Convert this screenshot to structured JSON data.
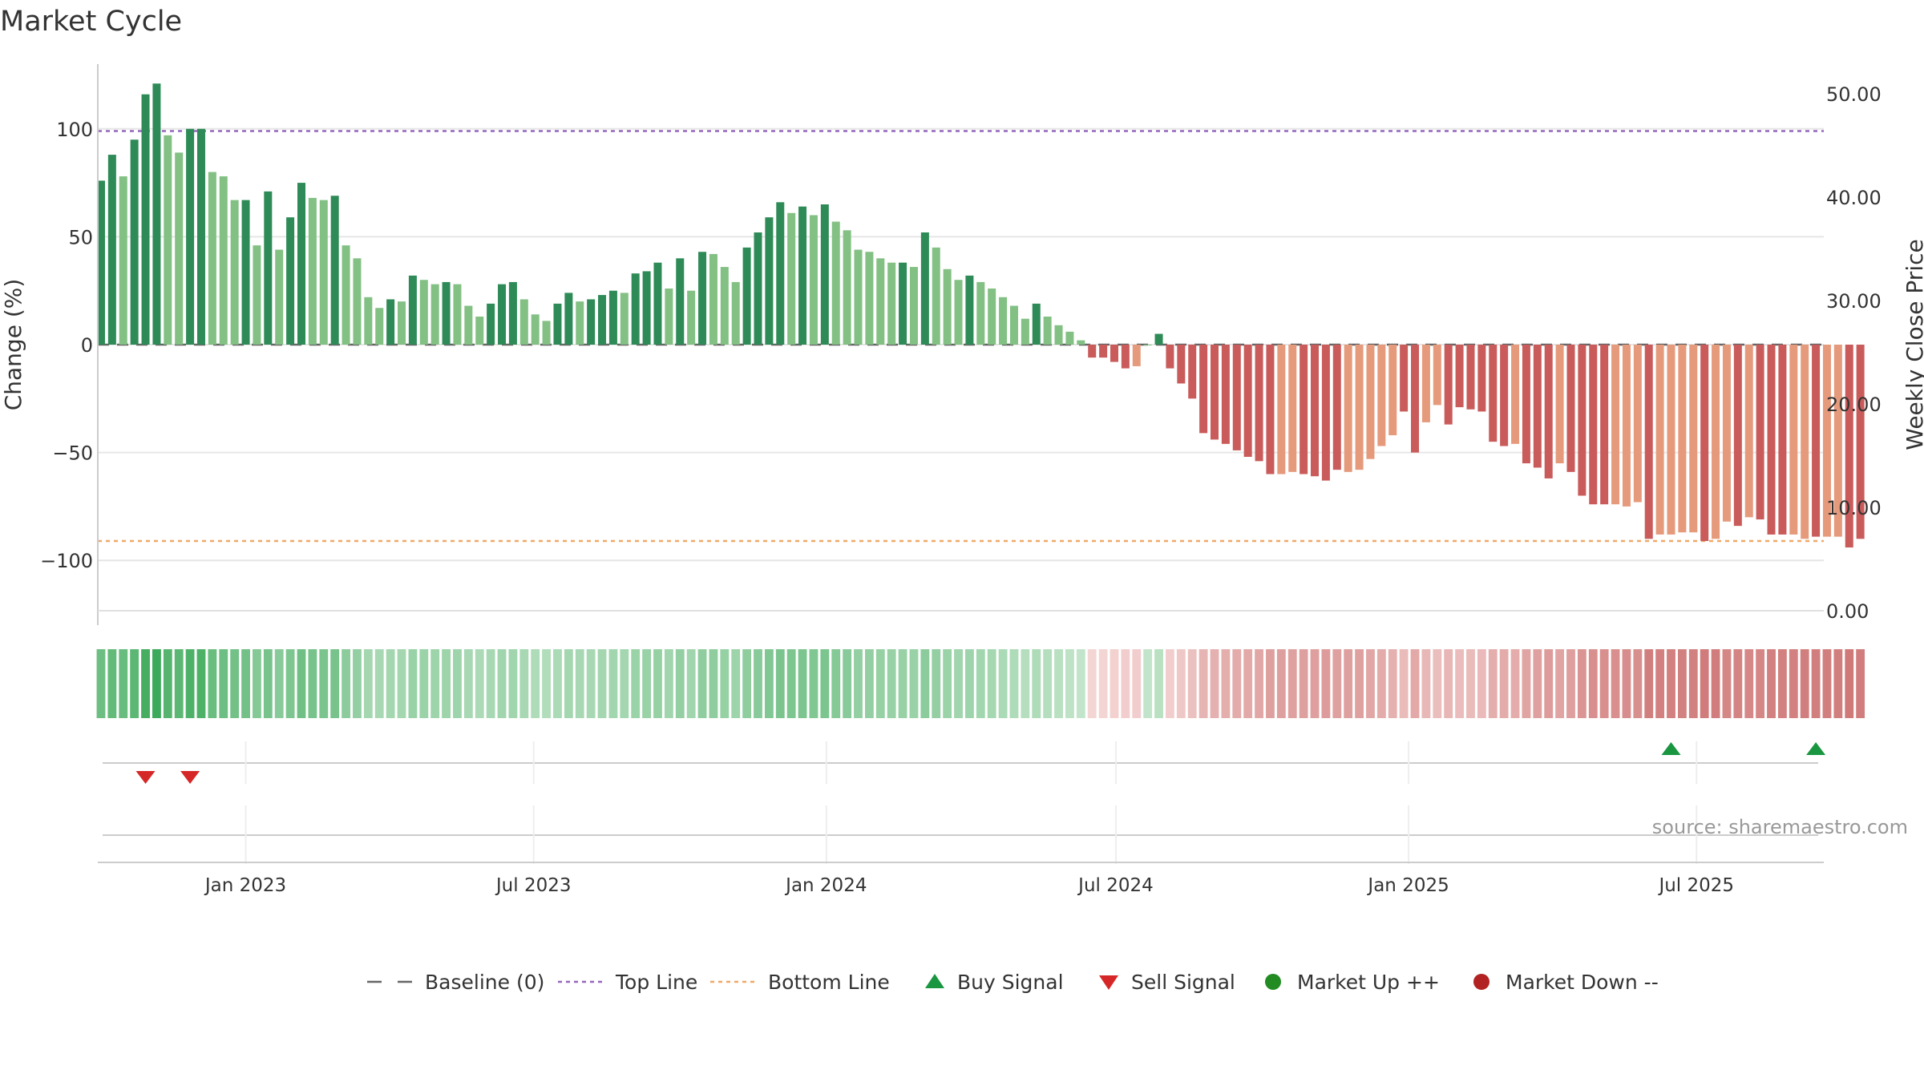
{
  "chart_data": {
    "type": "bar",
    "title": "Market Cycle",
    "ylabel": "Change (%)",
    "y2label": "Weekly Close Price",
    "ylim": [
      -130,
      130
    ],
    "y_ticks": [
      100,
      50,
      0,
      -50,
      -100
    ],
    "y_tick_labels": [
      "100",
      "50",
      "0",
      "−50",
      "−100"
    ],
    "y2lim": [
      0,
      52
    ],
    "y2_ticks": [
      0,
      10,
      20,
      30,
      40,
      50
    ],
    "y2_tick_labels": [
      "0.00",
      "10.00",
      "20.00",
      "30.00",
      "40.00",
      "50.00"
    ],
    "x_range": [
      "2022-09-30",
      "2025-09-19"
    ],
    "x_ticks": [
      "2023-01-01",
      "2023-07-01",
      "2024-01-01",
      "2024-07-01",
      "2025-01-01",
      "2025-07-01"
    ],
    "x_tick_labels": [
      "Jan 2023",
      "Jul 2023",
      "Jan 2024",
      "Jul 2024",
      "Jan 2025",
      "Jul 2025"
    ],
    "grid": true,
    "legend_position": "bottom",
    "source_text": "source: sharemaestro.com",
    "start_week": "2022-10-02",
    "week_step_days": 7,
    "values": [
      76,
      88,
      78,
      95,
      116,
      121,
      97,
      89,
      100,
      100,
      80,
      78,
      67,
      67,
      46,
      71,
      44,
      59,
      75,
      68,
      67,
      69,
      46,
      40,
      22,
      17,
      21,
      20,
      32,
      30,
      28,
      29,
      28,
      18,
      13,
      19,
      28,
      29,
      21,
      14,
      11,
      19,
      24,
      20,
      21,
      23,
      25,
      24,
      33,
      34,
      38,
      26,
      40,
      25,
      43,
      42,
      36,
      29,
      45,
      52,
      59,
      66,
      61,
      64,
      60,
      65,
      57,
      53,
      44,
      43,
      40,
      38,
      38,
      36,
      52,
      45,
      35,
      30,
      32,
      29,
      26,
      22,
      18,
      12,
      19,
      13,
      9,
      6,
      2,
      -6,
      -6,
      -8,
      -11,
      -10,
      0,
      5,
      -11,
      -18,
      -25,
      -41,
      -44,
      -46,
      -49,
      -52,
      -54,
      -60,
      -60,
      -59,
      -60,
      -61,
      -63,
      -58,
      -59,
      -58,
      -53,
      -47,
      -42,
      -31,
      -50,
      -36,
      -28,
      -37,
      -29,
      -30,
      -31,
      -45,
      -47,
      -46,
      -55,
      -57,
      -62,
      -55,
      -59,
      -70,
      -74,
      -74,
      -74,
      -75,
      -73,
      -90,
      -88,
      -88,
      -87,
      -87,
      -91,
      -90,
      -82,
      -84,
      -80,
      -81,
      -88,
      -88,
      -88,
      -90,
      -89,
      -89,
      -89,
      -94,
      -90
    ],
    "bar_style": [
      1,
      1,
      0,
      1,
      1,
      1,
      0,
      0,
      1,
      1,
      0,
      0,
      0,
      1,
      0,
      1,
      0,
      1,
      1,
      0,
      0,
      1,
      0,
      0,
      0,
      0,
      1,
      0,
      1,
      0,
      0,
      1,
      0,
      0,
      0,
      1,
      1,
      1,
      0,
      0,
      0,
      1,
      1,
      0,
      1,
      1,
      1,
      0,
      1,
      1,
      1,
      0,
      1,
      0,
      1,
      0,
      0,
      0,
      1,
      1,
      1,
      1,
      0,
      1,
      0,
      1,
      0,
      0,
      0,
      0,
      0,
      0,
      1,
      0,
      1,
      0,
      0,
      0,
      1,
      0,
      0,
      0,
      0,
      0,
      1,
      0,
      0,
      0,
      0,
      1,
      1,
      1,
      1,
      0,
      0,
      1,
      1,
      1,
      1,
      1,
      1,
      1,
      1,
      1,
      1,
      1,
      0,
      0,
      1,
      1,
      1,
      1,
      0,
      0,
      0,
      0,
      0,
      1,
      1,
      0,
      0,
      1,
      1,
      1,
      1,
      1,
      1,
      0,
      1,
      1,
      1,
      0,
      1,
      1,
      1,
      1,
      0,
      0,
      0,
      1,
      0,
      0,
      0,
      0,
      1,
      0,
      0,
      1,
      0,
      1,
      1,
      1,
      0,
      0,
      1,
      0,
      0,
      1,
      1,
      0
    ],
    "color_strip": [
      0.72,
      0.78,
      0.75,
      0.82,
      0.95,
      1.0,
      0.85,
      0.82,
      0.9,
      0.9,
      0.74,
      0.72,
      0.68,
      0.68,
      0.58,
      0.66,
      0.56,
      0.62,
      0.7,
      0.66,
      0.64,
      0.66,
      0.54,
      0.5,
      0.4,
      0.38,
      0.4,
      0.4,
      0.46,
      0.45,
      0.44,
      0.44,
      0.43,
      0.38,
      0.35,
      0.38,
      0.42,
      0.42,
      0.38,
      0.34,
      0.32,
      0.36,
      0.4,
      0.38,
      0.38,
      0.4,
      0.41,
      0.4,
      0.45,
      0.46,
      0.48,
      0.42,
      0.5,
      0.42,
      0.52,
      0.52,
      0.48,
      0.44,
      0.52,
      0.56,
      0.6,
      0.64,
      0.62,
      0.63,
      0.61,
      0.63,
      0.58,
      0.56,
      0.5,
      0.5,
      0.48,
      0.47,
      0.47,
      0.46,
      0.54,
      0.5,
      0.45,
      0.42,
      0.43,
      0.41,
      0.39,
      0.36,
      0.34,
      0.3,
      0.34,
      0.3,
      0.28,
      0.25,
      0.22,
      -0.15,
      -0.15,
      -0.18,
      -0.2,
      -0.2,
      0.22,
      0.28,
      -0.2,
      -0.25,
      -0.3,
      -0.4,
      -0.42,
      -0.44,
      -0.46,
      -0.48,
      -0.5,
      -0.55,
      -0.55,
      -0.54,
      -0.55,
      -0.56,
      -0.58,
      -0.54,
      -0.55,
      -0.54,
      -0.5,
      -0.46,
      -0.42,
      -0.34,
      -0.48,
      -0.37,
      -0.32,
      -0.38,
      -0.33,
      -0.34,
      -0.35,
      -0.44,
      -0.46,
      -0.45,
      -0.52,
      -0.54,
      -0.58,
      -0.52,
      -0.56,
      -0.64,
      -0.68,
      -0.68,
      -0.68,
      -0.69,
      -0.67,
      -0.8,
      -0.79,
      -0.79,
      -0.78,
      -0.78,
      -0.82,
      -0.81,
      -0.74,
      -0.76,
      -0.73,
      -0.74,
      -0.79,
      -0.79,
      -0.79,
      -0.8,
      -0.8,
      -0.8,
      -0.8,
      -0.84,
      -0.81
    ],
    "top_line": 99,
    "bottom_line": -91,
    "buy_signals": [
      "2025-06-15",
      "2025-09-14"
    ],
    "sell_signals": [
      "2022-10-30",
      "2022-11-27"
    ],
    "legend": [
      {
        "key": "baseline",
        "label": "Baseline (0)"
      },
      {
        "key": "top",
        "label": "Top Line"
      },
      {
        "key": "bottom",
        "label": "Bottom Line"
      },
      {
        "key": "buy",
        "label": "Buy Signal"
      },
      {
        "key": "sell",
        "label": "Sell Signal"
      },
      {
        "key": "up",
        "label": "Market Up ++"
      },
      {
        "key": "down",
        "label": "Market Down --"
      }
    ],
    "colors": {
      "pos_dark": "#2e8b57",
      "pos_light": "#82c083",
      "neg_dark": "#c95b5b",
      "neg_light": "#e59a7c",
      "top_line": "#9467bd",
      "bottom_line": "#f0a868",
      "buy": "#1a9641",
      "sell": "#d62728",
      "up": "#228b22",
      "down": "#b22222",
      "grid": "#e6e6e6",
      "axis": "#cccccc",
      "text": "#333333"
    }
  }
}
